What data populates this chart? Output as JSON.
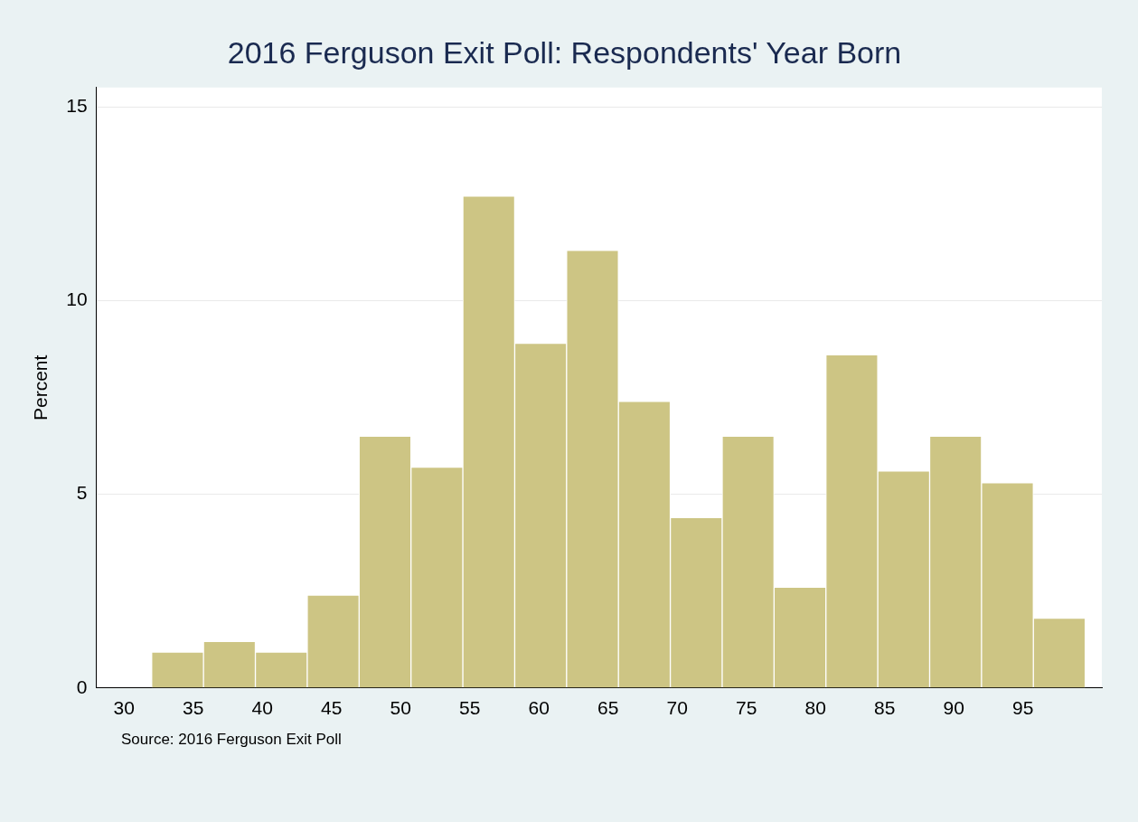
{
  "chart_data": {
    "type": "histogram",
    "title": "2016 Ferguson Exit Poll: Respondents' Year Born",
    "ylabel": "Percent",
    "bins": [
      32,
      35.75,
      39.5,
      43.25,
      47,
      50.75,
      54.5,
      58.25,
      62,
      65.75,
      69.5,
      73.25,
      77,
      80.75,
      84.5,
      88.25,
      92,
      95.75,
      99.5
    ],
    "values": [
      0.93,
      1.2,
      0.93,
      2.4,
      6.5,
      5.7,
      12.7,
      8.9,
      11.3,
      7.4,
      4.4,
      6.5,
      2.6,
      8.6,
      5.6,
      6.5,
      5.3,
      1.8
    ],
    "color": "#cdc584",
    "xlim": [
      28,
      100.7
    ],
    "xticks": [
      30,
      35,
      40,
      45,
      50,
      55,
      60,
      65,
      70,
      75,
      80,
      85,
      90,
      95
    ],
    "ylim": [
      0,
      15.5
    ],
    "yticks": [
      0,
      5,
      10,
      15
    ],
    "grid": "y",
    "annotations": [
      "Source:  2016 Ferguson Exit Poll"
    ]
  }
}
